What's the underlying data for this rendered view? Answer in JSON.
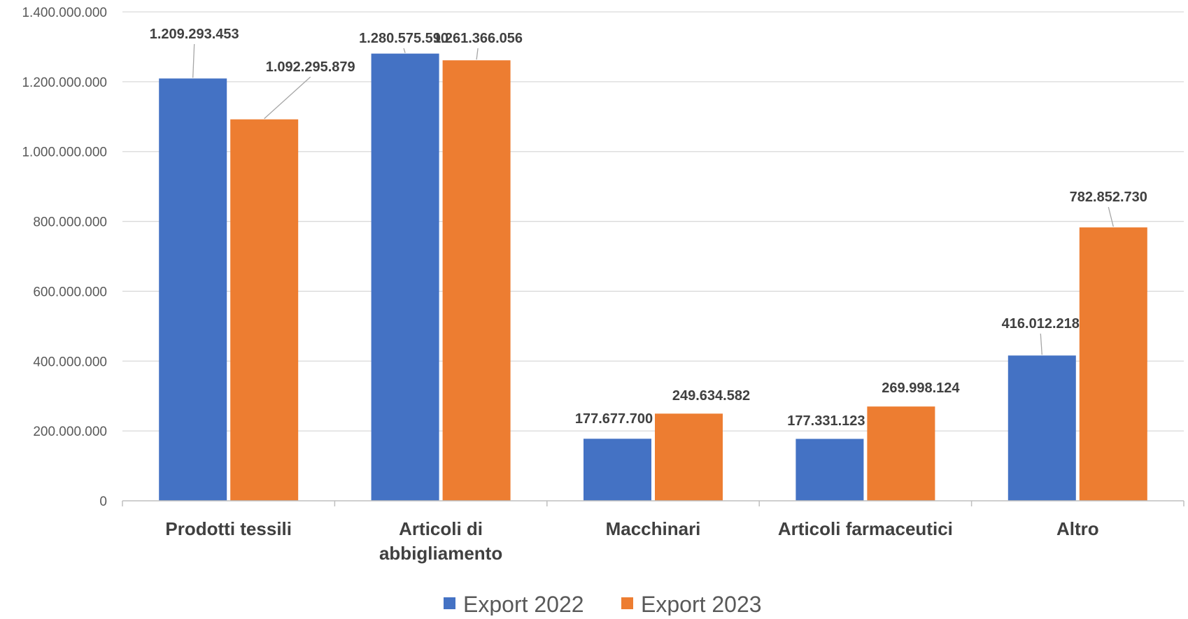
{
  "chart_data": {
    "type": "bar",
    "categories": [
      [
        "Prodotti tessili"
      ],
      [
        "Articoli di",
        "abbigliamento"
      ],
      [
        "Macchinari"
      ],
      [
        "Articoli farmaceutici"
      ],
      [
        "Altro"
      ]
    ],
    "series": [
      {
        "name": "Export 2022",
        "color": "#4472c4",
        "values": [
          1209293453,
          1280575590,
          177677700,
          177331123,
          416012218
        ],
        "labels": [
          "1.209.293.453",
          "1.280.575.590",
          "177.677.700",
          "177.331.123",
          "416.012.218"
        ]
      },
      {
        "name": "Export 2023",
        "color": "#ed7d31",
        "values": [
          1092295879,
          1261366056,
          249634582,
          269998124,
          782852730
        ],
        "labels": [
          "1.092.295.879",
          "1.261.366.056",
          "249.634.582",
          "269.998.124",
          "782.852.730"
        ]
      }
    ],
    "ylim": [
      0,
      1400000000
    ],
    "yticks": [
      {
        "value": 0,
        "label": "0"
      },
      {
        "value": 200000000,
        "label": "200.000.000"
      },
      {
        "value": 400000000,
        "label": "400.000.000"
      },
      {
        "value": 600000000,
        "label": "600.000.000"
      },
      {
        "value": 800000000,
        "label": "800.000.000"
      },
      {
        "value": 1000000000,
        "label": "1.000.000.000"
      },
      {
        "value": 1200000000,
        "label": "1.200.000.000"
      },
      {
        "value": 1400000000,
        "label": "1.400.000.000"
      }
    ],
    "grid": true,
    "legend_position": "bottom"
  }
}
